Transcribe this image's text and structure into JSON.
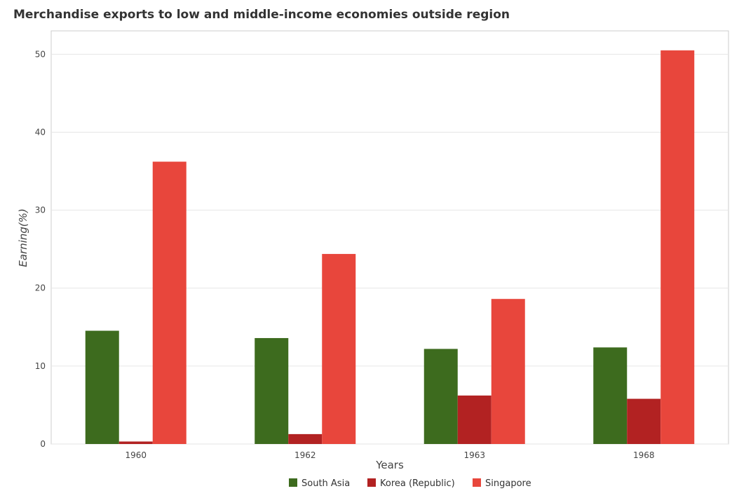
{
  "chart_data": {
    "type": "bar",
    "title": "Merchandise exports to low and middle-income economies outside region",
    "xlabel": "Years",
    "ylabel": "Earning(%)",
    "categories": [
      "1960",
      "1962",
      "1963",
      "1968"
    ],
    "ylim": [
      0,
      53
    ],
    "yticks": [
      0,
      10,
      20,
      30,
      40,
      50
    ],
    "grid": true,
    "legend_position": "bottom",
    "series": [
      {
        "name": "South Asia",
        "color": "#3d6b1e",
        "values": [
          14.53,
          13.59,
          12.2,
          12.39
        ]
      },
      {
        "name": "Korea (Republic)",
        "color": "#b22222",
        "values": [
          0.32,
          1.27,
          6.22,
          5.8
        ]
      },
      {
        "name": "Singapore",
        "color": "#e8463c",
        "values": [
          36.22,
          24.38,
          18.61,
          50.5
        ]
      }
    ]
  }
}
